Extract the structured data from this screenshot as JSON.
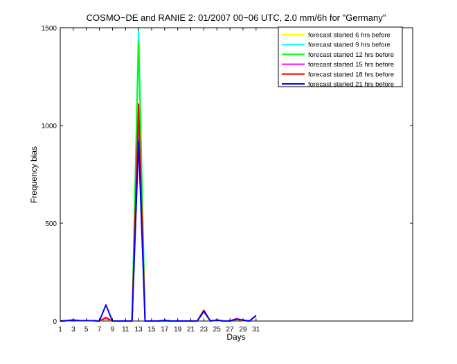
{
  "chart_data": {
    "type": "line",
    "title": "COSMO−DE and RANIE 2: 01/2007 00−06 UTC, 2.0 mm/6h for \"Germany\"",
    "xlabel": "Days",
    "ylabel": "Frequency bias",
    "xlim": [
      1,
      55
    ],
    "ylim": [
      0,
      1500
    ],
    "xticks": [
      1,
      3,
      5,
      7,
      9,
      11,
      13,
      15,
      17,
      19,
      21,
      23,
      25,
      27,
      29,
      31
    ],
    "yticks": [
      0,
      500,
      1000,
      1500
    ],
    "grid": false,
    "legend_position": "top-right",
    "series": [
      {
        "name": "forecast started 6 hrs before",
        "color": "#ffff00",
        "x": [
          1,
          2,
          3,
          4,
          5,
          6,
          7,
          8,
          9,
          10,
          11,
          12,
          13,
          14,
          15,
          16,
          17,
          18,
          19,
          20,
          21,
          22,
          23,
          24,
          25,
          26,
          27,
          28,
          29,
          30,
          31
        ],
        "values": [
          0,
          2,
          4,
          2,
          2,
          2,
          0,
          10,
          0,
          0,
          0,
          0,
          1100,
          0,
          0,
          0,
          2,
          0,
          0,
          0,
          0,
          0,
          45,
          0,
          3,
          0,
          0,
          8,
          2,
          0,
          25
        ]
      },
      {
        "name": "forecast started 9 hrs before",
        "color": "#00ffff",
        "x": [
          1,
          2,
          3,
          4,
          5,
          6,
          7,
          8,
          9,
          10,
          11,
          12,
          13,
          14,
          15,
          16,
          17,
          18,
          19,
          20,
          21,
          22,
          23,
          24,
          25,
          26,
          27,
          28,
          29,
          30,
          31
        ],
        "values": [
          0,
          3,
          5,
          2,
          2,
          2,
          0,
          12,
          0,
          0,
          0,
          0,
          1490,
          0,
          0,
          0,
          5,
          0,
          0,
          0,
          0,
          0,
          50,
          0,
          5,
          0,
          0,
          10,
          3,
          0,
          28
        ]
      },
      {
        "name": "forecast started 12 hrs before",
        "color": "#00ff00",
        "x": [
          1,
          2,
          3,
          4,
          5,
          6,
          7,
          8,
          9,
          10,
          11,
          12,
          13,
          14,
          15,
          16,
          17,
          18,
          19,
          20,
          21,
          22,
          23,
          24,
          25,
          26,
          27,
          28,
          29,
          30,
          31
        ],
        "values": [
          0,
          2,
          5,
          3,
          2,
          2,
          0,
          15,
          0,
          0,
          0,
          0,
          1430,
          0,
          0,
          0,
          3,
          0,
          0,
          0,
          0,
          0,
          55,
          0,
          5,
          0,
          0,
          10,
          3,
          0,
          28
        ]
      },
      {
        "name": "forecast started 15 hrs before",
        "color": "#ff00ff",
        "x": [
          1,
          2,
          3,
          4,
          5,
          6,
          7,
          8,
          9,
          10,
          11,
          12,
          13,
          14,
          15,
          16,
          17,
          18,
          19,
          20,
          21,
          22,
          23,
          24,
          25,
          26,
          27,
          28,
          29,
          30,
          31
        ],
        "values": [
          0,
          2,
          5,
          2,
          2,
          2,
          0,
          15,
          0,
          0,
          0,
          0,
          1000,
          0,
          0,
          0,
          2,
          0,
          0,
          0,
          0,
          0,
          55,
          0,
          5,
          0,
          0,
          12,
          3,
          0,
          28
        ]
      },
      {
        "name": "forecast started 18 hrs before",
        "color": "#ff0000",
        "x": [
          1,
          2,
          3,
          4,
          5,
          6,
          7,
          8,
          9,
          10,
          11,
          12,
          13,
          14,
          15,
          16,
          17,
          18,
          19,
          20,
          21,
          22,
          23,
          24,
          25,
          26,
          27,
          28,
          29,
          30,
          31
        ],
        "values": [
          0,
          2,
          5,
          2,
          2,
          2,
          0,
          18,
          0,
          0,
          0,
          0,
          1110,
          0,
          0,
          0,
          2,
          0,
          0,
          0,
          0,
          0,
          55,
          0,
          5,
          0,
          0,
          10,
          3,
          0,
          28
        ]
      },
      {
        "name": "forecast started 21 hrs before",
        "color": "#0000ff",
        "x": [
          1,
          2,
          3,
          4,
          5,
          6,
          7,
          8,
          9,
          10,
          11,
          12,
          13,
          14,
          15,
          16,
          17,
          18,
          19,
          20,
          21,
          22,
          23,
          24,
          25,
          26,
          27,
          28,
          29,
          30,
          31
        ],
        "values": [
          0,
          2,
          5,
          2,
          2,
          2,
          0,
          82,
          0,
          0,
          0,
          0,
          920,
          0,
          0,
          0,
          2,
          0,
          0,
          0,
          0,
          0,
          50,
          0,
          5,
          0,
          0,
          10,
          5,
          0,
          28
        ]
      }
    ]
  }
}
